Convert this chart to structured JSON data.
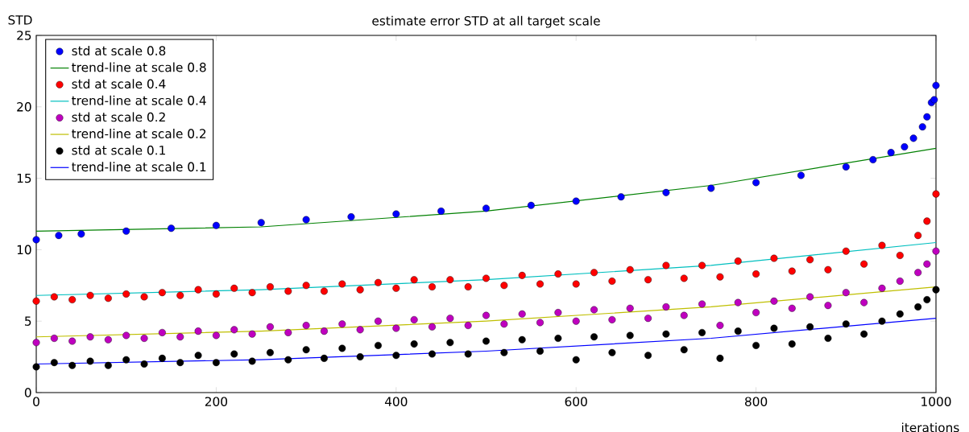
{
  "chart_data": {
    "type": "scatter",
    "title": "estimate error STD at all target scale",
    "xlabel": "iterations",
    "ylabel": "STD",
    "xlim": [
      0,
      1000
    ],
    "ylim": [
      0,
      25
    ],
    "xticks": [
      0,
      200,
      400,
      600,
      800,
      1000
    ],
    "yticks": [
      0,
      5,
      10,
      15,
      20,
      25
    ],
    "legend": "top left",
    "grid": false,
    "series": [
      {
        "name": "std at scale 0.8",
        "marker": "circle",
        "color": "#0000ff",
        "x": [
          0,
          25,
          50,
          100,
          150,
          200,
          250,
          300,
          350,
          400,
          450,
          500,
          550,
          600,
          650,
          700,
          750,
          800,
          850,
          900,
          930,
          950,
          965,
          975,
          985,
          990,
          995,
          998,
          1000
        ],
        "values": [
          10.7,
          11.0,
          11.1,
          11.3,
          11.5,
          11.7,
          11.9,
          12.1,
          12.3,
          12.5,
          12.7,
          12.9,
          13.1,
          13.4,
          13.7,
          14.0,
          14.3,
          14.7,
          15.2,
          15.8,
          16.3,
          16.8,
          17.2,
          17.8,
          18.6,
          19.3,
          20.3,
          20.5,
          21.5
        ]
      },
      {
        "name": "trend-line at scale 0.8",
        "type": "line",
        "marker": "none",
        "color": "#008000",
        "x": [
          0,
          250,
          500,
          750,
          1000
        ],
        "values": [
          11.3,
          11.6,
          12.7,
          14.5,
          17.1
        ]
      },
      {
        "name": "std at scale 0.4",
        "marker": "circle",
        "color": "#ff0000",
        "x": [
          0,
          20,
          40,
          60,
          80,
          100,
          120,
          140,
          160,
          180,
          200,
          220,
          240,
          260,
          280,
          300,
          320,
          340,
          360,
          380,
          400,
          420,
          440,
          460,
          480,
          500,
          520,
          540,
          560,
          580,
          600,
          620,
          640,
          660,
          680,
          700,
          720,
          740,
          760,
          780,
          800,
          820,
          840,
          860,
          880,
          900,
          920,
          940,
          960,
          980,
          990,
          1000
        ],
        "values": [
          6.4,
          6.7,
          6.5,
          6.8,
          6.6,
          6.9,
          6.7,
          7.0,
          6.8,
          7.2,
          6.9,
          7.3,
          7.0,
          7.4,
          7.1,
          7.5,
          7.1,
          7.6,
          7.2,
          7.7,
          7.3,
          7.9,
          7.4,
          7.9,
          7.4,
          8.0,
          7.5,
          8.2,
          7.6,
          8.3,
          7.6,
          8.4,
          7.8,
          8.6,
          7.9,
          8.9,
          8.0,
          8.9,
          8.1,
          9.2,
          8.3,
          9.4,
          8.5,
          9.3,
          8.6,
          9.9,
          9.0,
          10.3,
          9.6,
          11.0,
          12.0,
          13.9
        ]
      },
      {
        "name": "trend-line at scale 0.4",
        "type": "line",
        "marker": "none",
        "color": "#00bfbf",
        "x": [
          0,
          250,
          500,
          750,
          1000
        ],
        "values": [
          6.8,
          7.2,
          7.9,
          8.9,
          10.5
        ]
      },
      {
        "name": "std at scale 0.2",
        "marker": "circle",
        "color": "#bf00bf",
        "x": [
          0,
          20,
          40,
          60,
          80,
          100,
          120,
          140,
          160,
          180,
          200,
          220,
          240,
          260,
          280,
          300,
          320,
          340,
          360,
          380,
          400,
          420,
          440,
          460,
          480,
          500,
          520,
          540,
          560,
          580,
          600,
          620,
          640,
          660,
          680,
          700,
          720,
          740,
          760,
          780,
          800,
          820,
          840,
          860,
          880,
          900,
          920,
          940,
          960,
          980,
          990,
          1000
        ],
        "values": [
          3.5,
          3.8,
          3.6,
          3.9,
          3.7,
          4.0,
          3.8,
          4.2,
          3.9,
          4.3,
          4.0,
          4.4,
          4.1,
          4.6,
          4.2,
          4.7,
          4.3,
          4.8,
          4.4,
          5.0,
          4.5,
          5.1,
          4.6,
          5.2,
          4.7,
          5.4,
          4.8,
          5.5,
          4.9,
          5.6,
          5.0,
          5.8,
          5.1,
          5.9,
          5.2,
          6.0,
          5.4,
          6.2,
          4.7,
          6.3,
          5.6,
          6.4,
          5.9,
          6.7,
          6.1,
          7.0,
          6.3,
          7.3,
          7.8,
          8.4,
          9.0,
          9.9
        ]
      },
      {
        "name": "trend-line at scale 0.2",
        "type": "line",
        "marker": "none",
        "color": "#bfbf00",
        "x": [
          0,
          250,
          500,
          750,
          1000
        ],
        "values": [
          3.9,
          4.3,
          5.0,
          6.0,
          7.4
        ]
      },
      {
        "name": "std at scale 0.1",
        "marker": "circle",
        "color": "#000000",
        "x": [
          0,
          20,
          40,
          60,
          80,
          100,
          120,
          140,
          160,
          180,
          200,
          220,
          240,
          260,
          280,
          300,
          320,
          340,
          360,
          380,
          400,
          420,
          440,
          460,
          480,
          500,
          520,
          540,
          560,
          580,
          600,
          620,
          640,
          660,
          680,
          700,
          720,
          740,
          760,
          780,
          800,
          820,
          840,
          860,
          880,
          900,
          920,
          940,
          960,
          980,
          990,
          1000
        ],
        "values": [
          1.8,
          2.1,
          1.9,
          2.2,
          1.9,
          2.3,
          2.0,
          2.4,
          2.1,
          2.6,
          2.1,
          2.7,
          2.2,
          2.8,
          2.3,
          3.0,
          2.4,
          3.1,
          2.5,
          3.3,
          2.6,
          3.4,
          2.7,
          3.5,
          2.7,
          3.6,
          2.8,
          3.7,
          2.9,
          3.8,
          2.3,
          3.9,
          2.8,
          4.0,
          2.6,
          4.1,
          3.0,
          4.2,
          2.4,
          4.3,
          3.3,
          4.5,
          3.4,
          4.6,
          3.8,
          4.8,
          4.1,
          5.0,
          5.5,
          6.0,
          6.5,
          7.2
        ]
      },
      {
        "name": "trend-line at scale 0.1",
        "type": "line",
        "marker": "none",
        "color": "#0000ff",
        "x": [
          0,
          250,
          500,
          750,
          1000
        ],
        "values": [
          2.0,
          2.3,
          2.9,
          3.8,
          5.2
        ]
      }
    ]
  }
}
